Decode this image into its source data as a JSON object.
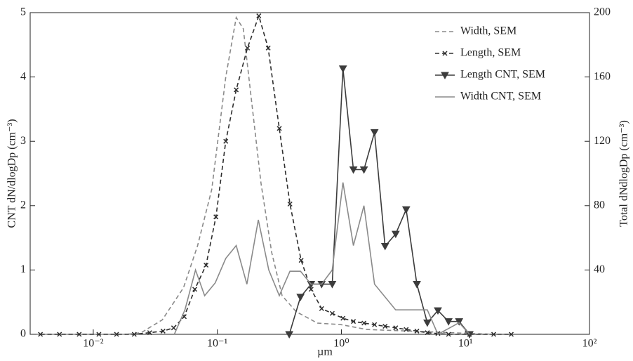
{
  "chart_data": {
    "type": "line",
    "xlabel": "µm",
    "ylabel": "CNT dN/dlogDp (cm⁻³)",
    "y2label": "Total dNdlogDp (cm⁻³)",
    "xscale": "log",
    "xlim": [
      0.0031,
      100
    ],
    "xticks": [
      {
        "value": 0.01,
        "label": "10⁻²"
      },
      {
        "value": 0.1,
        "label": "10⁻¹"
      },
      {
        "value": 1,
        "label": "10⁰"
      },
      {
        "value": 10,
        "label": "10¹"
      },
      {
        "value": 100,
        "label": "10²"
      }
    ],
    "ylim": [
      0,
      5
    ],
    "yticks": [
      0,
      1,
      2,
      3,
      4,
      5
    ],
    "y2lim": [
      0,
      200
    ],
    "y2ticks": [
      40,
      80,
      120,
      160,
      200
    ],
    "legend": "upper right",
    "series": [
      {
        "name": "Width, SEM",
        "color": "#8a8a8a",
        "dash": "dashed",
        "marker": "none",
        "axis": "y2",
        "x": [
          0.0035,
          0.0187,
          0.0243,
          0.036,
          0.0534,
          0.0693,
          0.0901,
          0.117,
          0.142,
          0.162,
          0.185,
          0.225,
          0.274,
          0.333,
          0.433,
          0.641,
          1,
          1.6,
          3.51,
          7.69,
          16.9
        ],
        "values": [
          0,
          0,
          1,
          9,
          29,
          55,
          90,
          160,
          197,
          190,
          151,
          94,
          51,
          24,
          14,
          7,
          6,
          3,
          2,
          1,
          0
        ]
      },
      {
        "name": "Length, SEM",
        "color": "#2e2e2e",
        "dash": "dashed",
        "marker": "x",
        "axis": "y2",
        "x": [
          0.00375,
          0.00534,
          0.0077,
          0.0111,
          0.0154,
          0.0214,
          0.0285,
          0.0365,
          0.0444,
          0.0541,
          0.0658,
          0.0811,
          0.0974,
          0.117,
          0.142,
          0.175,
          0.216,
          0.257,
          0.316,
          0.385,
          0.474,
          0.57,
          0.693,
          0.844,
          1.03,
          1.25,
          1.52,
          1.85,
          2.25,
          2.74,
          3.33,
          4.06,
          4.93,
          6.0,
          7.31,
          10.8,
          16.9,
          23.4
        ],
        "values": [
          0,
          0,
          0,
          0,
          0,
          0,
          1,
          2,
          4,
          11,
          28,
          43,
          73,
          120,
          152,
          178,
          198,
          178,
          128,
          81,
          46,
          28,
          16,
          13,
          10,
          8,
          7,
          6,
          5,
          4,
          3,
          2,
          1,
          0.5,
          0,
          0,
          0,
          0
        ]
      },
      {
        "name": "Length CNT, SEM",
        "color": "#3c3c3c",
        "dash": "solid",
        "marker": "triangle-down",
        "x": [
          0.38,
          0.468,
          0.57,
          0.693,
          0.844,
          1.03,
          1.25,
          1.52,
          1.85,
          2.25,
          2.74,
          3.33,
          4.06,
          4.93,
          6.0,
          7.31,
          8.89,
          10.8
        ],
        "values": [
          0,
          0.58,
          0.78,
          0.78,
          0.78,
          4.13,
          2.56,
          2.56,
          3.14,
          1.37,
          1.56,
          1.94,
          0.78,
          0.18,
          0.37,
          0.2,
          0.2,
          0
        ]
      },
      {
        "name": "Width CNT, SEM",
        "color": "#8a8a8a",
        "dash": "solid",
        "marker": "none",
        "x": [
          0.045,
          0.0548,
          0.0667,
          0.079,
          0.0962,
          0.117,
          0.142,
          0.173,
          0.214,
          0.26,
          0.316,
          0.385,
          0.468,
          0.57,
          0.693,
          0.844,
          1.03,
          1.25,
          1.52,
          1.85,
          2.74,
          4.93,
          6.0,
          8.89,
          10.8
        ],
        "values": [
          0,
          0.38,
          1.0,
          0.6,
          0.8,
          1.18,
          1.38,
          0.78,
          1.78,
          1.0,
          0.6,
          0.98,
          0.98,
          0.78,
          0.78,
          1.0,
          2.36,
          1.38,
          2.0,
          0.78,
          0.38,
          0.38,
          0,
          0.18,
          0
        ]
      }
    ]
  }
}
